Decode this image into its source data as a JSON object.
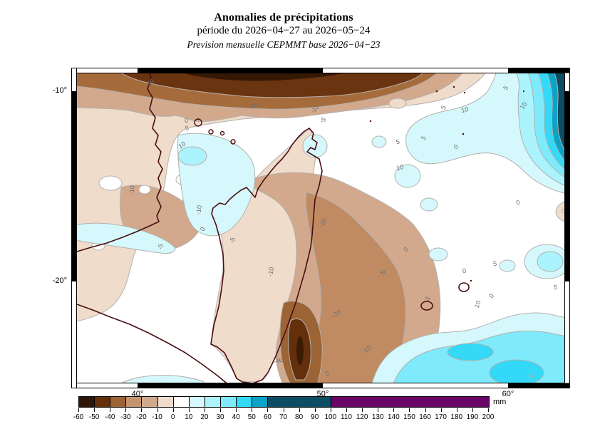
{
  "header": {
    "title": "Anomalies de précipitations",
    "period": "période du 2026−04−27 au 2026−05−24",
    "source": "Prevision mensuelle CEPMMT base 2026−04−23"
  },
  "map": {
    "x_axis": [
      {
        "label": "40°",
        "u": 93
      },
      {
        "label": "50°",
        "u": 353
      },
      {
        "label": "60°",
        "u": 613
      }
    ],
    "y_axis": [
      {
        "label": "-10°",
        "v": 33
      },
      {
        "label": "-20°",
        "v": 300
      }
    ],
    "contour_labels": [
      {
        "t": "-30",
        "u": 112,
        "v": 24,
        "r": -38
      },
      {
        "t": "-20",
        "u": 255,
        "v": 57,
        "r": -8
      },
      {
        "t": "-10",
        "u": 344,
        "v": 60,
        "r": -42
      },
      {
        "t": "-5",
        "u": 355,
        "v": 76,
        "r": -42
      },
      {
        "t": "0",
        "u": 162,
        "v": 77,
        "r": -10
      },
      {
        "t": "5",
        "u": 163,
        "v": 88,
        "r": -10
      },
      {
        "t": "10",
        "u": 157,
        "v": 111,
        "r": -35
      },
      {
        "t": "-10",
        "u": 88,
        "v": 172,
        "r": -85
      },
      {
        "t": "-10",
        "u": 182,
        "v": 200,
        "r": -80
      },
      {
        "t": "0",
        "u": 187,
        "v": 228,
        "r": -60
      },
      {
        "t": "-5",
        "u": 128,
        "v": 252,
        "r": -75
      },
      {
        "t": "-5",
        "u": 229,
        "v": 243,
        "r": -75
      },
      {
        "t": "-10",
        "u": 283,
        "v": 287,
        "r": -78
      },
      {
        "t": "-20",
        "u": 356,
        "v": 219,
        "r": -65
      },
      {
        "t": "-20",
        "u": 374,
        "v": 348,
        "r": -35
      },
      {
        "t": "-40",
        "u": 291,
        "v": 414,
        "r": -15
      },
      {
        "t": "-10",
        "u": 416,
        "v": 398,
        "r": -35
      },
      {
        "t": "-5",
        "u": 440,
        "v": 288,
        "r": -85
      },
      {
        "t": "0",
        "u": 472,
        "v": 257,
        "r": -50
      },
      {
        "t": "5",
        "u": 525,
        "v": 57,
        "r": -65
      },
      {
        "t": "10",
        "u": 553,
        "v": 62,
        "r": -15
      },
      {
        "t": "0",
        "u": 542,
        "v": 113,
        "r": -45
      },
      {
        "t": "5",
        "u": 459,
        "v": 107,
        "r": -15
      },
      {
        "t": "10",
        "u": 462,
        "v": 143,
        "r": -15
      },
      {
        "t": "5",
        "u": 497,
        "v": 100,
        "r": -60
      },
      {
        "t": "5",
        "u": 612,
        "v": 30,
        "r": -55
      },
      {
        "t": "10",
        "u": 637,
        "v": 55,
        "r": -55
      },
      {
        "t": "0",
        "u": 628,
        "v": 192,
        "r": -20
      },
      {
        "t": "5",
        "u": 680,
        "v": 311,
        "r": -5
      },
      {
        "t": "0",
        "u": 552,
        "v": 288,
        "r": -8
      },
      {
        "t": "5",
        "u": 595,
        "v": 278,
        "r": -8
      },
      {
        "t": "10",
        "u": 573,
        "v": 333,
        "r": -70
      },
      {
        "t": "0",
        "u": 592,
        "v": 322,
        "r": -55
      },
      {
        "t": "5",
        "u": 502,
        "v": 326,
        "r": -45
      },
      {
        "t": "0",
        "u": 360,
        "v": 432,
        "r": -15
      }
    ]
  },
  "colorbar": {
    "unit": "mm",
    "tick_labels": [
      "-60",
      "-50",
      "-40",
      "-30",
      "-20",
      "-10",
      "0",
      "10",
      "20",
      "30",
      "40",
      "50",
      "60",
      "70",
      "80",
      "90",
      "100",
      "110",
      "120",
      "130",
      "140",
      "150",
      "160",
      "170",
      "180",
      "190",
      "200"
    ],
    "segments": [
      {
        "from": -60,
        "to": -50,
        "span": 1,
        "color": "#2E1607"
      },
      {
        "from": -50,
        "to": -40,
        "span": 1,
        "color": "#63300B"
      },
      {
        "from": -40,
        "to": -30,
        "span": 1,
        "color": "#9C6434"
      },
      {
        "from": -30,
        "to": -20,
        "span": 1,
        "color": "#C39470"
      },
      {
        "from": -20,
        "to": -10,
        "span": 1,
        "color": "#D0A98C"
      },
      {
        "from": -10,
        "to": 0,
        "span": 1,
        "color": "#F0DCCB"
      },
      {
        "from": 0,
        "to": 10,
        "span": 1,
        "color": "#FFFFFF"
      },
      {
        "from": 10,
        "to": 20,
        "span": 1,
        "color": "#D5F8FC"
      },
      {
        "from": 20,
        "to": 30,
        "span": 1,
        "color": "#ABF3FD"
      },
      {
        "from": 30,
        "to": 40,
        "span": 1,
        "color": "#7FEAFB"
      },
      {
        "from": 40,
        "to": 50,
        "span": 1,
        "color": "#33D9F6"
      },
      {
        "from": 50,
        "to": 60,
        "span": 1,
        "color": "#0DA3C6"
      },
      {
        "from": 60,
        "to": 100,
        "span": 4,
        "color": "#0D4D63"
      },
      {
        "from": 100,
        "to": 200,
        "span": 10,
        "color": "#6A0467"
      }
    ]
  }
}
